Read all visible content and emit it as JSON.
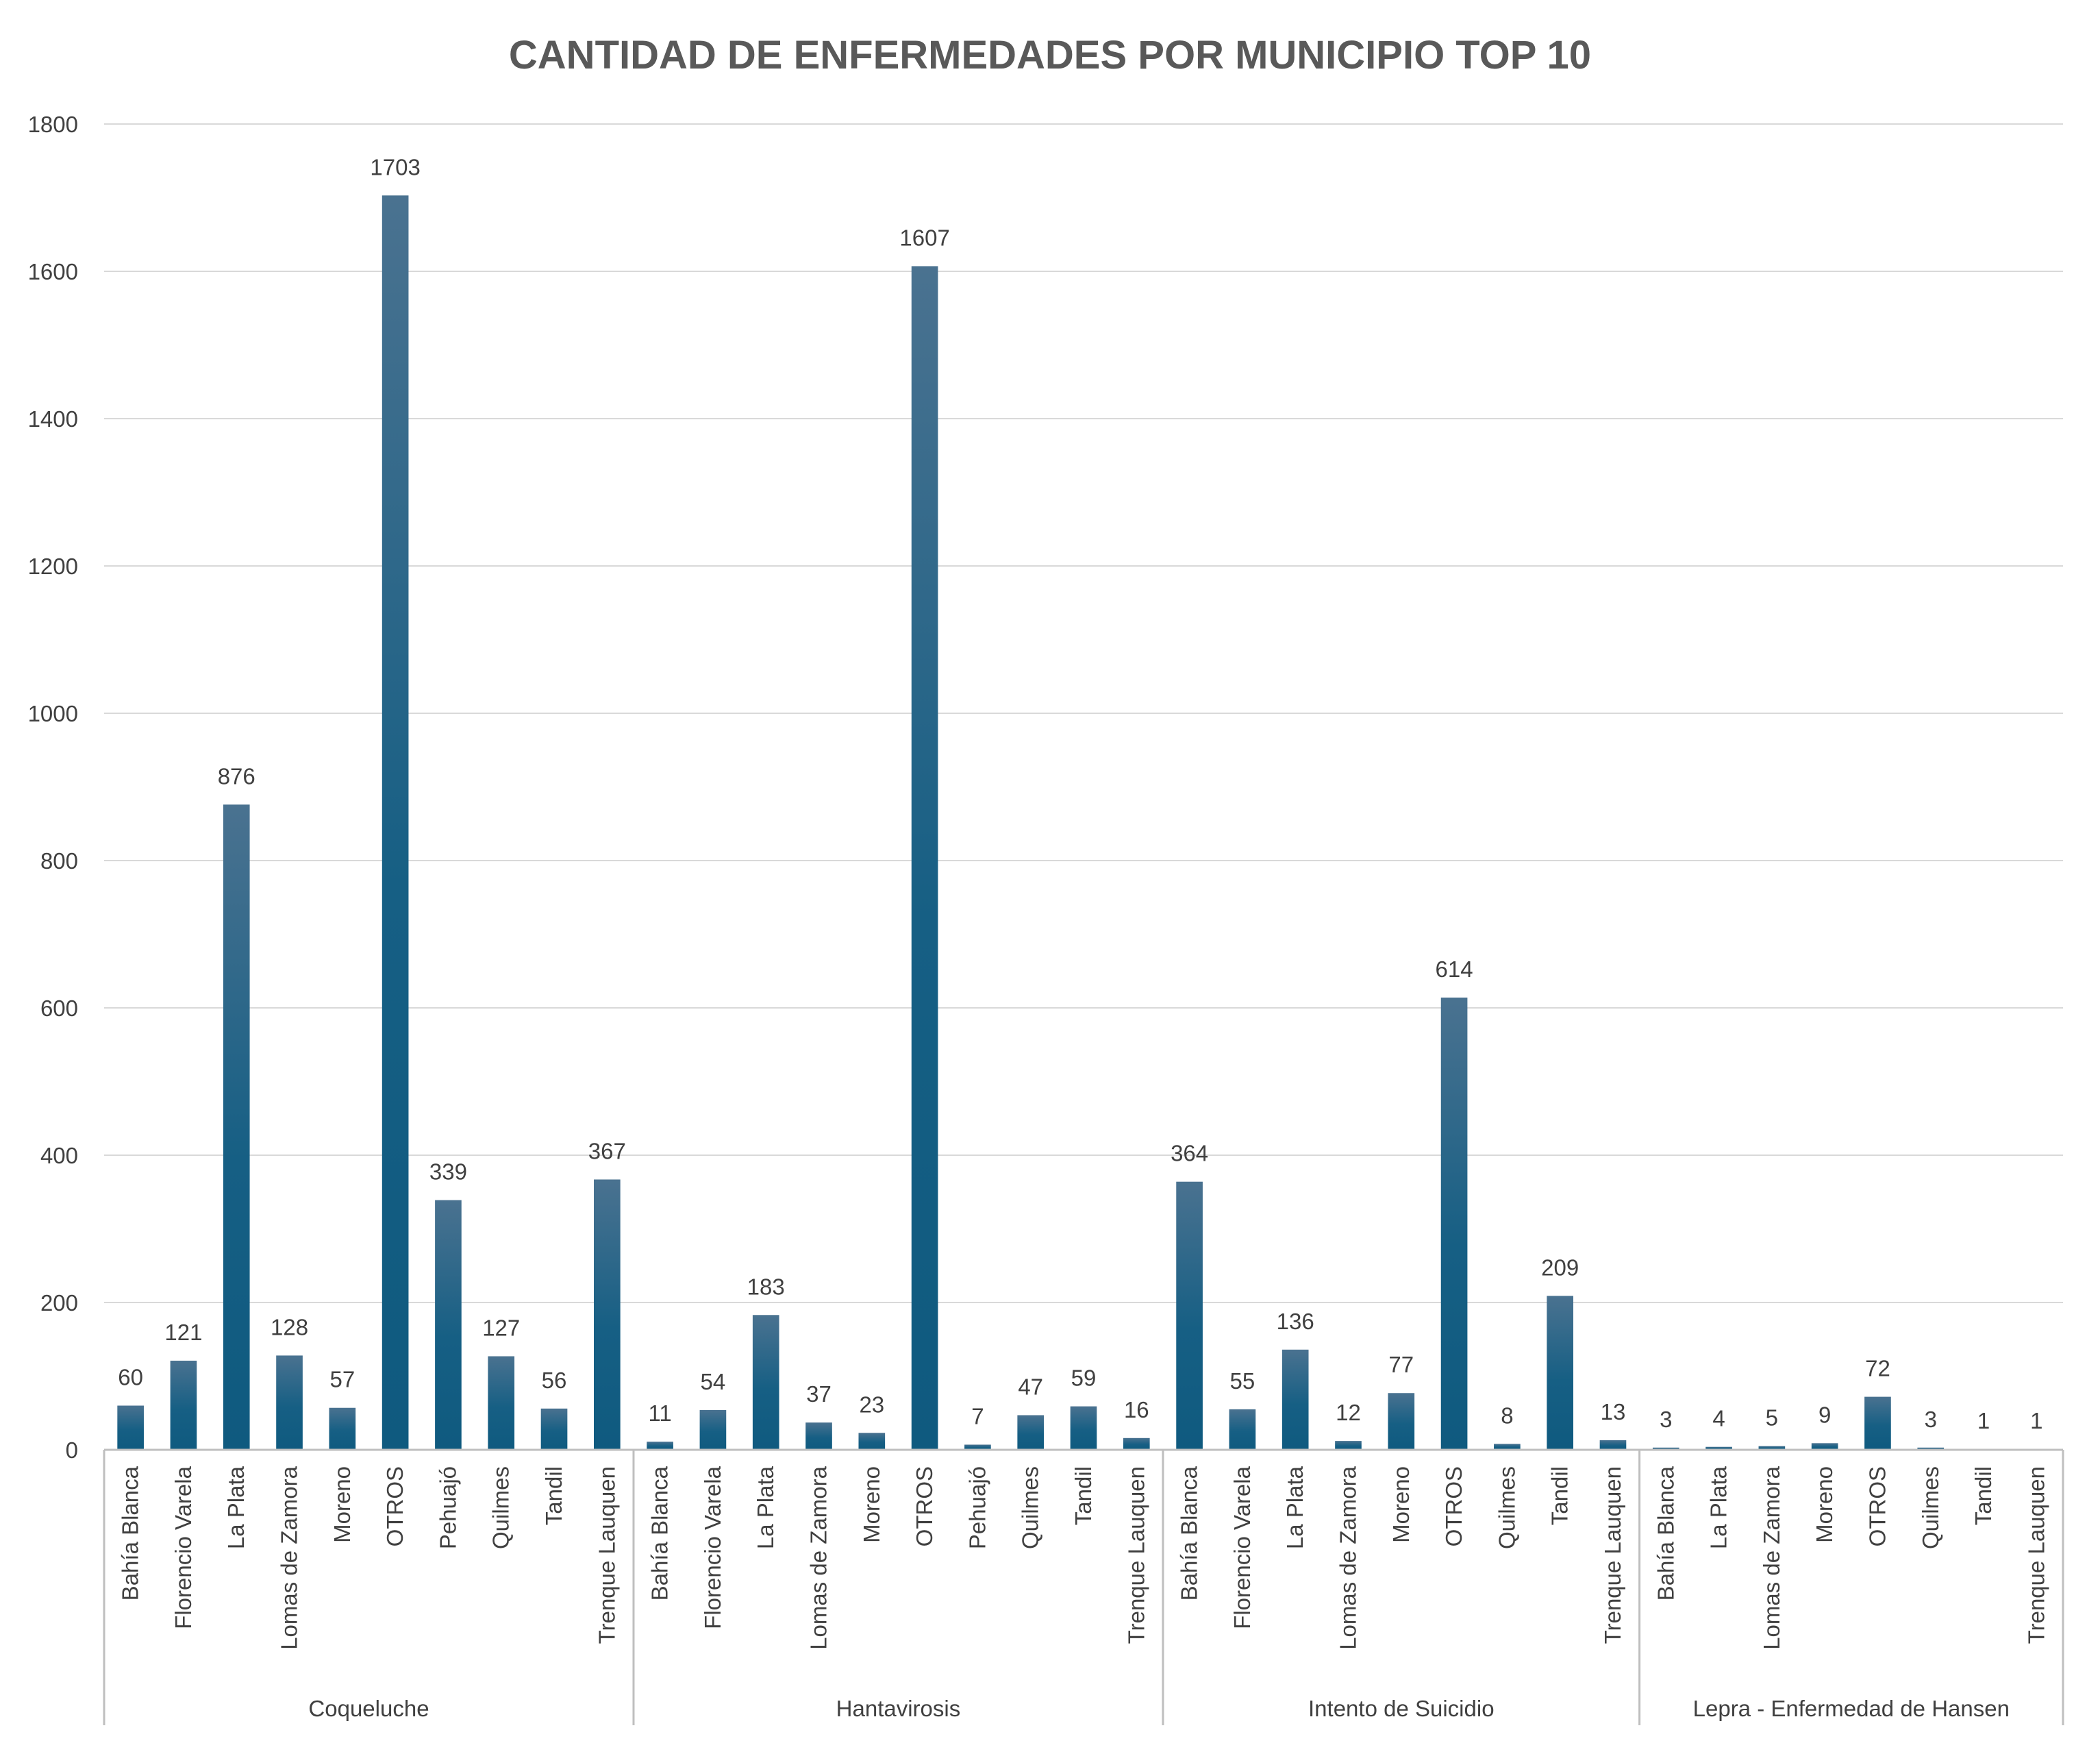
{
  "chart_data": {
    "type": "bar",
    "title": "CANTIDAD DE ENFERMEDADES POR MUNICIPIO TOP 10",
    "xlabel": "",
    "ylabel": "",
    "ylim": [
      0,
      1800
    ],
    "yticks": [
      0,
      200,
      400,
      600,
      800,
      1000,
      1200,
      1400,
      1600,
      1800
    ],
    "grid": true,
    "legend": "none",
    "bar_color": "#1f5f85",
    "groups": [
      {
        "name": "Coqueluche",
        "categories": [
          "Bahía Blanca",
          "Florencio Varela",
          "La Plata",
          "Lomas de Zamora",
          "Moreno",
          "OTROS",
          "Pehuajó",
          "Quilmes",
          "Tandil",
          "Trenque Lauquen"
        ],
        "values": [
          60,
          121,
          876,
          128,
          57,
          1703,
          339,
          127,
          56,
          367
        ]
      },
      {
        "name": "Hantavirosis",
        "categories": [
          "Bahía Blanca",
          "Florencio Varela",
          "La Plata",
          "Lomas de Zamora",
          "Moreno",
          "OTROS",
          "Pehuajó",
          "Quilmes",
          "Tandil",
          "Trenque Lauquen"
        ],
        "values": [
          11,
          54,
          183,
          37,
          23,
          1607,
          7,
          47,
          59,
          16
        ]
      },
      {
        "name": "Intento de Suicidio",
        "categories": [
          "Bahía Blanca",
          "Florencio Varela",
          "La Plata",
          "Lomas de Zamora",
          "Moreno",
          "OTROS",
          "Quilmes",
          "Tandil",
          "Trenque Lauquen"
        ],
        "values": [
          364,
          55,
          136,
          12,
          77,
          614,
          8,
          209,
          13
        ]
      },
      {
        "name": "Lepra - Enfermedad de Hansen",
        "categories": [
          "Bahía Blanca",
          "La Plata",
          "Lomas de Zamora",
          "Moreno",
          "OTROS",
          "Quilmes",
          "Tandil",
          "Trenque Lauquen"
        ],
        "values": [
          3,
          4,
          5,
          9,
          72,
          3,
          1,
          1
        ]
      }
    ]
  }
}
